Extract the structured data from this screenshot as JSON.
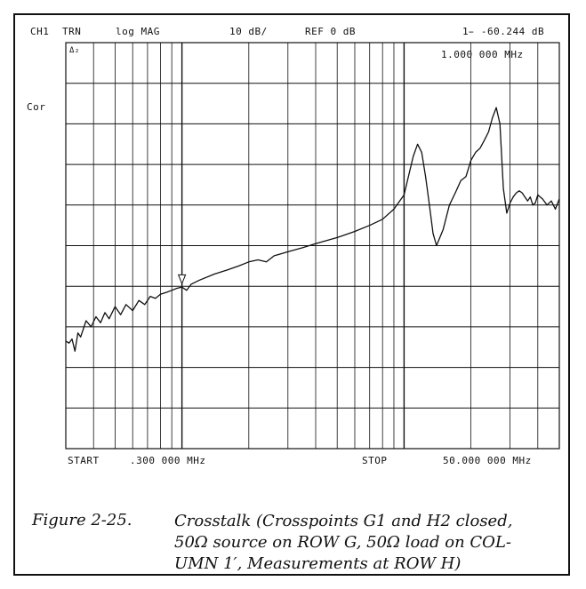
{
  "header": {
    "channel": "CH1",
    "mode": "TRN",
    "format": "log MAG",
    "scale": "10 dB/",
    "ref": "REF 0 dB",
    "marker_value": "1̵ -60.244 dB",
    "marker_freq": "1.000 000 MHz"
  },
  "side": {
    "marker_tag": "Δ₂",
    "correction": "Cor"
  },
  "footer": {
    "start_label": "START",
    "start_value": ".300 000 MHz",
    "stop_label": "STOP",
    "stop_value": "50.000 000 MHz"
  },
  "caption": {
    "label": "Figure 2-25.",
    "lines": [
      "Crosstalk (Crosspoints G1 and H2 closed,",
      "50Ω source on ROW G, 50Ω load on COL-",
      "UMN 1′, Measurements at ROW H)"
    ]
  },
  "chart_data": {
    "type": "line",
    "x_scale": "log",
    "xlim": [
      0.3,
      50
    ],
    "ylim": [
      -100,
      0
    ],
    "x_unit": "MHz",
    "y_unit": "dB",
    "grid": true,
    "marker": {
      "x": 1.0,
      "y": -60.244
    },
    "series": [
      {
        "x": [
          0.3,
          0.31,
          0.32,
          0.33,
          0.34,
          0.35,
          0.37,
          0.39,
          0.41,
          0.43,
          0.45,
          0.47,
          0.5,
          0.53,
          0.56,
          0.6,
          0.64,
          0.68,
          0.72,
          0.76,
          0.8,
          0.85,
          0.9,
          0.95,
          1.0,
          1.05,
          1.1,
          1.2,
          1.4,
          1.6,
          1.8,
          2.0,
          2.2,
          2.4,
          2.6,
          2.8,
          3.0,
          3.5,
          4.0,
          5.0,
          6.0,
          7.0,
          8.0,
          9.0,
          10.0,
          11.0,
          11.5,
          12.0,
          12.5,
          13.0,
          13.5,
          14.0,
          15.0,
          16.0,
          17.0,
          18.0,
          19.0,
          20.0,
          21.0,
          22.0,
          23.0,
          24.0,
          25.0,
          26.0,
          27.0,
          28.0,
          29.0,
          30.0,
          31.0,
          32.0,
          33.0,
          34.0,
          35.0,
          36.0,
          37.0,
          38.0,
          39.0,
          40.0,
          41.0,
          42.0,
          44.0,
          46.0,
          48.0,
          50.0
        ],
        "values": [
          -73.5,
          -74.0,
          -73.0,
          -76.0,
          -71.5,
          -72.5,
          -68.5,
          -70.0,
          -67.5,
          -69.0,
          -66.5,
          -68.0,
          -65.0,
          -67.0,
          -64.5,
          -66.0,
          -63.5,
          -64.5,
          -62.5,
          -63.0,
          -62.0,
          -61.5,
          -61.0,
          -60.5,
          -60.2,
          -61.0,
          -59.5,
          -58.5,
          -57.0,
          -56.0,
          -55.0,
          -54.0,
          -53.5,
          -54.0,
          -52.5,
          -52.0,
          -51.5,
          -50.5,
          -49.5,
          -48.0,
          -46.5,
          -45.0,
          -43.5,
          -41.0,
          -37.5,
          -28.0,
          -25.0,
          -27.0,
          -33.0,
          -40.0,
          -47.0,
          -50.0,
          -46.0,
          -40.0,
          -37.0,
          -34.0,
          -33.0,
          -29.0,
          -27.0,
          -26.0,
          -24.0,
          -22.0,
          -18.5,
          -16.0,
          -20.0,
          -36.0,
          -42.0,
          -39.5,
          -38.0,
          -37.0,
          -36.5,
          -37.0,
          -38.0,
          -39.0,
          -38.0,
          -40.0,
          -39.5,
          -37.5,
          -38.0,
          -38.5,
          -40.0,
          -39.0,
          -41.0,
          -38.5
        ]
      }
    ]
  }
}
